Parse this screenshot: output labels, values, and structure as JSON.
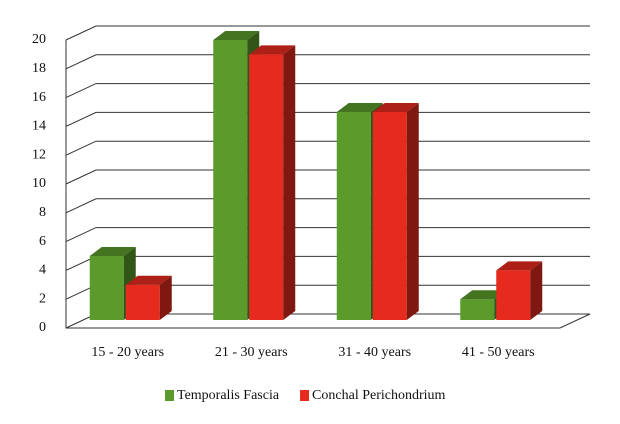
{
  "chart_data": {
    "type": "bar3d",
    "categories": [
      "15 - 20 years",
      "21 - 30 years",
      "31 - 40 years",
      "41 - 50 years"
    ],
    "series": [
      {
        "name": "Temporalis Fascia",
        "color": "#5b9b2b",
        "values": [
          5,
          20,
          15,
          2
        ]
      },
      {
        "name": "Conchal Perichondrium",
        "color": "#e62b1e",
        "values": [
          3,
          19,
          15,
          4
        ]
      }
    ],
    "ylim": [
      0,
      20
    ],
    "yticks": [
      0,
      2,
      4,
      6,
      8,
      10,
      12,
      14,
      16,
      18,
      20
    ],
    "grid": true,
    "legend": "bottom"
  }
}
